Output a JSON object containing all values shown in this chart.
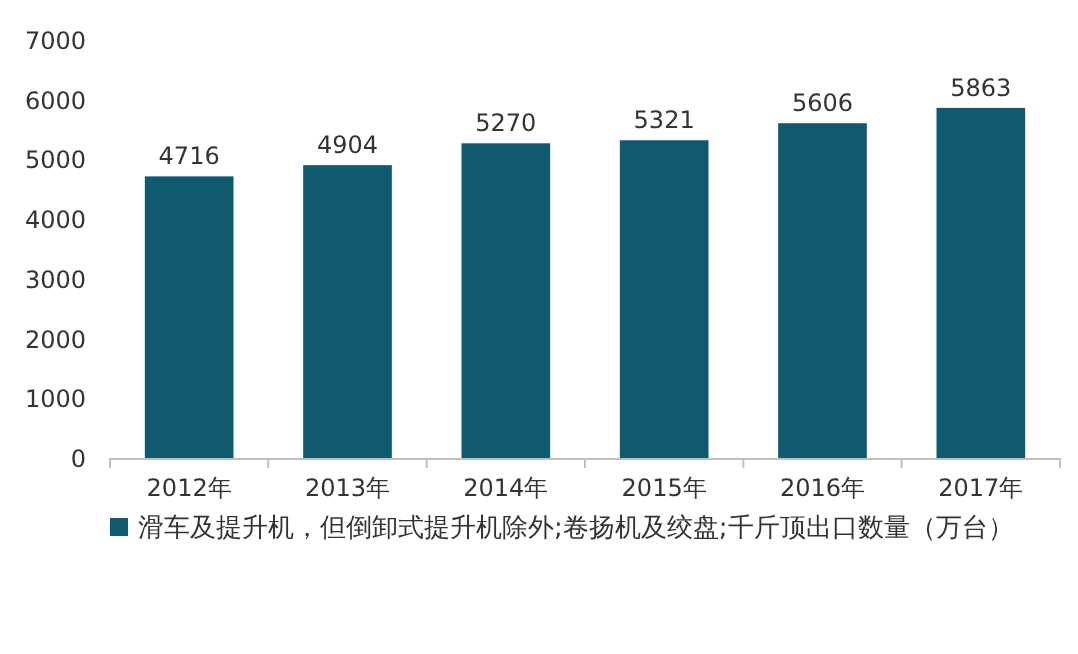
{
  "chart_data": {
    "type": "bar",
    "categories": [
      "2012年",
      "2013年",
      "2014年",
      "2015年",
      "2016年",
      "2017年"
    ],
    "series": [
      {
        "name": "滑车及提升机，但倒卸式提升机除外;卷扬机及绞盘;千斤顶出口数量（万台）",
        "color": "#0f5a6e",
        "values": [
          4716,
          4904,
          5270,
          5321,
          5606,
          5863
        ]
      }
    ],
    "ylim": [
      0,
      7000
    ],
    "yticks": [
      0,
      1000,
      2000,
      3000,
      4000,
      5000,
      6000,
      7000
    ],
    "data_labels": true,
    "legend": "bottom"
  }
}
